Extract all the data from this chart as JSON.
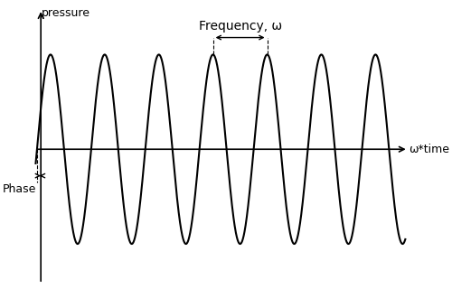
{
  "xlabel": "ω*time",
  "ylabel": "pressure",
  "frequency_label": "Frequency, ω",
  "phase_label": "Phase",
  "background_color": "#ffffff",
  "line_color": "#000000",
  "figsize": [
    5.0,
    3.2
  ],
  "dpi": 100,
  "phase_rad": 0.45,
  "num_cycles": 6.8,
  "wave_period": 1.0
}
